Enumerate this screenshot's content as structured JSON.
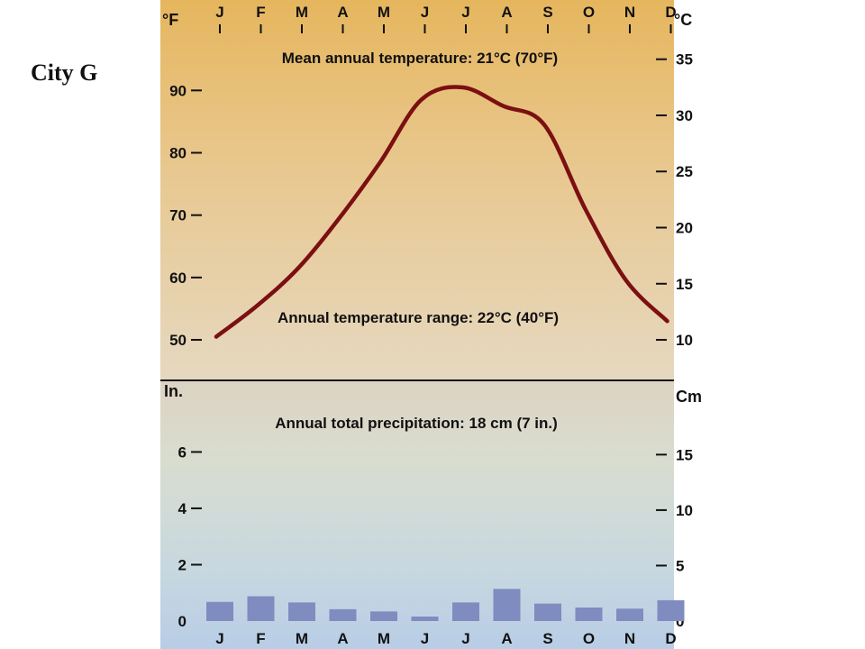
{
  "city_label": "City G",
  "chart_data": {
    "type": "climograph",
    "months": [
      "J",
      "F",
      "M",
      "A",
      "M",
      "J",
      "J",
      "A",
      "S",
      "O",
      "N",
      "D"
    ],
    "temperature": {
      "unit_left": "°F",
      "unit_right": "°C",
      "left_ticks": [
        50,
        60,
        70,
        80,
        90
      ],
      "right_ticks": [
        10,
        15,
        20,
        25,
        30,
        35
      ],
      "ylim_f": [
        43.5,
        104.5
      ],
      "values_f": [
        50.5,
        55.5,
        61.5,
        69.5,
        78.5,
        88.5,
        90.5,
        87.5,
        84.5,
        71.0,
        59.5,
        53.0
      ],
      "mean_annual_text": "Mean annual temperature: 21°C (70°F)",
      "range_text": "Annual temperature range: 22°C (40°F)",
      "line_color": "#7b0f12"
    },
    "precipitation": {
      "unit_left": "In.",
      "unit_right": "Cm",
      "left_ticks": [
        0,
        2,
        4,
        6
      ],
      "right_ticks": [
        0,
        5,
        10,
        15
      ],
      "ylim_in": [
        0,
        8.54
      ],
      "values_in": [
        0.68,
        0.88,
        0.66,
        0.42,
        0.34,
        0.16,
        0.66,
        1.14,
        0.62,
        0.48,
        0.44,
        0.74
      ],
      "total_text": "Annual total precipitation: 18 cm (7 in.)",
      "bar_color": "#7f8cbf"
    }
  }
}
